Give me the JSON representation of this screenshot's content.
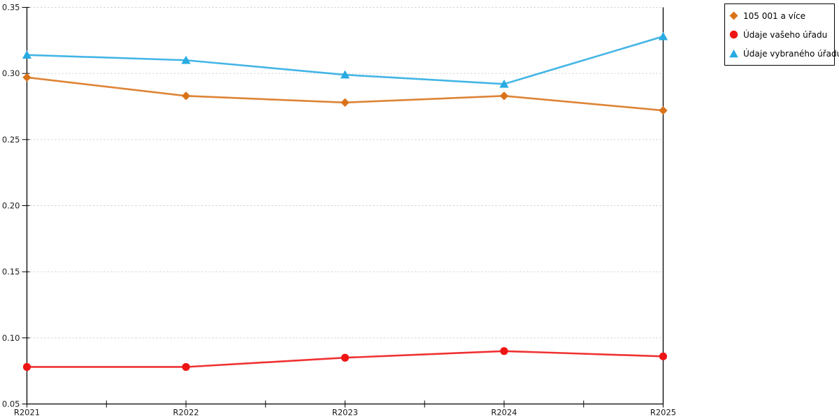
{
  "chart_data": {
    "type": "line",
    "title": "",
    "xlabel": "",
    "ylabel": "",
    "categories": [
      "R2021",
      "R2022",
      "R2023",
      "R2024",
      "R2025"
    ],
    "series": [
      {
        "name": "105 001 a více",
        "marker": "diamond",
        "color": "#D9731A",
        "values": [
          0.297,
          0.283,
          0.278,
          0.283,
          0.272
        ]
      },
      {
        "name": "Údaje vašeho úřadu",
        "marker": "circle",
        "color": "#EE1414",
        "values": [
          0.078,
          0.078,
          0.085,
          0.09,
          0.086
        ]
      },
      {
        "name": "Údaje vybraného úřadu",
        "marker": "triangle",
        "color": "#29ABE2",
        "values": [
          0.314,
          0.31,
          0.299,
          0.292,
          0.328
        ]
      }
    ],
    "ylim": [
      0.05,
      0.35
    ],
    "y_ticks": [
      {
        "label": "0.35",
        "value": 0.35
      },
      {
        "label": "0.30",
        "value": 0.3
      },
      {
        "label": "0.25",
        "value": 0.25
      },
      {
        "label": "0.20",
        "value": 0.2
      },
      {
        "label": "0.15",
        "value": 0.15
      },
      {
        "label": "0.10",
        "value": 0.1
      },
      {
        "label": "0.05",
        "value": 0.05
      }
    ],
    "grid": "horizontal-dotted",
    "legend_position": "outside-top-right",
    "colors": {
      "axis": "#000000",
      "gridline": "#c9c9c9",
      "tick_label": "#1a1a1a"
    }
  }
}
